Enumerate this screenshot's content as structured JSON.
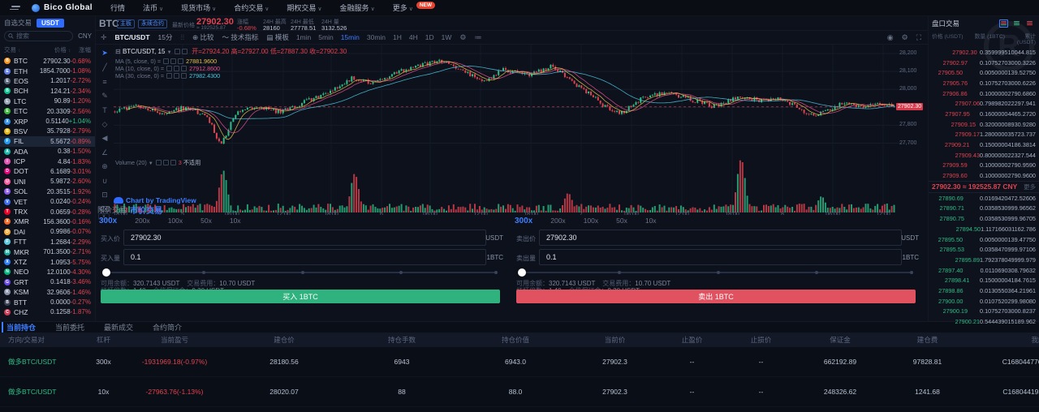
{
  "colors": {
    "accent": "#3d7eff",
    "up": "#2ebd85",
    "down": "#e0434f",
    "ma5": "#e7c14c",
    "ma10": "#e8518f",
    "ma30": "#4cc8e0"
  },
  "navbar": {
    "logo_text": "Bico Global",
    "items": [
      {
        "label": "行情",
        "caret": false
      },
      {
        "label": "法币",
        "caret": true
      },
      {
        "label": "现货市场",
        "caret": true
      },
      {
        "label": "合约交易",
        "caret": true
      },
      {
        "label": "期权交易",
        "caret": true
      },
      {
        "label": "金融服务",
        "caret": true
      },
      {
        "label": "更多",
        "caret": true
      }
    ],
    "badge": "NEW"
  },
  "sidebar": {
    "fav_tab": "自选交易",
    "quote_tab": "USDT",
    "search_placeholder": "搜索",
    "currency_label": "CNY",
    "col_pair": "交易",
    "col_price": "价格",
    "col_change": "涨幅",
    "coins": [
      {
        "sym": "BTC",
        "price": "27902.30",
        "chg": "-0.68%",
        "dir": "dn",
        "color": "#f7931a",
        "sel": false
      },
      {
        "sym": "ETH",
        "price": "1854.7000",
        "chg": "-1.08%",
        "dir": "dn",
        "color": "#627eea",
        "sel": false
      },
      {
        "sym": "EOS",
        "price": "1.2017",
        "chg": "-2.72%",
        "dir": "dn",
        "color": "#59637a",
        "sel": false
      },
      {
        "sym": "BCH",
        "price": "124.21",
        "chg": "-2.34%",
        "dir": "dn",
        "color": "#0ac18e",
        "sel": false
      },
      {
        "sym": "LTC",
        "price": "90.89",
        "chg": "-1.20%",
        "dir": "dn",
        "color": "#9aa5b5",
        "sel": false
      },
      {
        "sym": "ETC",
        "price": "20.3309",
        "chg": "-2.56%",
        "dir": "dn",
        "color": "#3ab83a",
        "sel": false
      },
      {
        "sym": "XRP",
        "price": "0.51140",
        "chg": "+1.04%",
        "dir": "up",
        "color": "#2f8fe8",
        "sel": false
      },
      {
        "sym": "BSV",
        "price": "35.7928",
        "chg": "-2.79%",
        "dir": "dn",
        "color": "#eab304",
        "sel": false
      },
      {
        "sym": "FIL",
        "price": "5.5672",
        "chg": "-0.89%",
        "dir": "dn",
        "color": "#1f9cf0",
        "sel": true
      },
      {
        "sym": "ADA",
        "price": "0.38",
        "chg": "-1.50%",
        "dir": "dn",
        "color": "#15b8a6",
        "sel": false
      },
      {
        "sym": "ICP",
        "price": "4.84",
        "chg": "-1.83%",
        "dir": "dn",
        "color": "#e755b5",
        "sel": false
      },
      {
        "sym": "DOT",
        "price": "6.1689",
        "chg": "-3.01%",
        "dir": "dn",
        "color": "#e6007a",
        "sel": false
      },
      {
        "sym": "UNI",
        "price": "5.9872",
        "chg": "-2.60%",
        "dir": "dn",
        "color": "#ff5b9e",
        "sel": false
      },
      {
        "sym": "SOL",
        "price": "20.3515",
        "chg": "-1.92%",
        "dir": "dn",
        "color": "#8e5bf0",
        "sel": false
      },
      {
        "sym": "VET",
        "price": "0.0240",
        "chg": "-0.24%",
        "dir": "dn",
        "color": "#3e6ef0",
        "sel": false
      },
      {
        "sym": "TRX",
        "price": "0.0659",
        "chg": "-0.28%",
        "dir": "dn",
        "color": "#eb0029",
        "sel": false
      },
      {
        "sym": "XMR",
        "price": "156.3600",
        "chg": "-0.16%",
        "dir": "dn",
        "color": "#f26822",
        "sel": false
      },
      {
        "sym": "DAI",
        "price": "0.9986",
        "chg": "-0.07%",
        "dir": "dn",
        "color": "#f5ac37",
        "sel": false
      },
      {
        "sym": "FTT",
        "price": "1.2684",
        "chg": "-2.29%",
        "dir": "dn",
        "color": "#5fcade",
        "sel": false
      },
      {
        "sym": "MKR",
        "price": "701.3500",
        "chg": "-2.71%",
        "dir": "dn",
        "color": "#1aab9b",
        "sel": false
      },
      {
        "sym": "XTZ",
        "price": "1.0953",
        "chg": "-5.75%",
        "dir": "dn",
        "color": "#2c7df7",
        "sel": false
      },
      {
        "sym": "NEO",
        "price": "12.0100",
        "chg": "-4.30%",
        "dir": "dn",
        "color": "#00b57c",
        "sel": false
      },
      {
        "sym": "GRT",
        "price": "0.1418",
        "chg": "-3.46%",
        "dir": "dn",
        "color": "#6747ed",
        "sel": false
      },
      {
        "sym": "KSM",
        "price": "32.9606",
        "chg": "-1.46%",
        "dir": "dn",
        "color": "#8893a8",
        "sel": false
      },
      {
        "sym": "BTT",
        "price": "0.0000",
        "chg": "-0.27%",
        "dir": "dn",
        "color": "#3a4356",
        "sel": false
      },
      {
        "sym": "CHZ",
        "price": "0.1258",
        "chg": "-1.87%",
        "dir": "dn",
        "color": "#cd3a54",
        "sel": false
      }
    ]
  },
  "chart": {
    "header": {
      "symbol": "BTC",
      "badge1": "主板",
      "badge2": "永续合约",
      "last_label": "最新价格",
      "last": "27902.30",
      "approx": "≈ 192525.87",
      "chg_label": "涨幅",
      "chg": "-0.68%",
      "high_label": "24H 最高",
      "high": "28160",
      "low_label": "24H 最低",
      "low": "27778.51",
      "vol_label": "24H 量",
      "vol": "3132.526"
    },
    "toolbar": {
      "symbol": "BTC/USDT",
      "interval": "15分",
      "compare": "比较",
      "indicators": "技术指标",
      "template": "模板",
      "timeframes": [
        "1min",
        "5min",
        "15min",
        "30min",
        "1H",
        "4H",
        "1D",
        "1W"
      ],
      "active_tf": "15min"
    },
    "legend": {
      "title": "BTC/USDT, 15",
      "o_label": "开=",
      "o": "27924.20",
      "h_label": "高=",
      "h": "27927.00",
      "l_label": "低=",
      "l": "27887.30",
      "c_label": "收=",
      "c": "27902.30",
      "ma5_label": "MA (5, close, 0) =",
      "ma5": "27881.9600",
      "ma10_label": "MA (10, close, 0) =",
      "ma10": "27912.8600",
      "ma30_label": "MA (30, close, 0) =",
      "ma30": "27982.4300",
      "vol_label": "Volume (20)",
      "vol_red": "3",
      "vol_na": "不适用"
    },
    "attribution": "Chart by TradingView",
    "price_labels": [
      28200,
      28100,
      28000,
      27900,
      27800,
      27700
    ],
    "current_tag": "27902.30",
    "time_labels": [
      "18:00",
      "5",
      "06:00",
      "12:00",
      "18:00",
      "6",
      "06:00",
      "12:00",
      "18:00",
      "7",
      "06:00",
      "12:00",
      "18:00",
      "8",
      "06:00",
      "12:00"
    ],
    "time_xs": [
      8,
      85,
      146,
      209,
      268,
      330,
      390,
      452,
      514,
      576,
      638,
      700,
      762,
      824,
      886,
      948
    ]
  },
  "chart_data": {
    "type": "candlestick",
    "symbol": "BTC/USDT",
    "interval": "15m",
    "price_range": [
      27630,
      28250
    ],
    "current_price": 27902.3,
    "ohlc_last": {
      "open": 27924.2,
      "high": 27927.0,
      "low": 27887.3,
      "close": 27902.3
    },
    "ma_values": {
      "ma5": 27881.96,
      "ma10": 27912.86,
      "ma30": 27982.43
    },
    "day_high": 28160,
    "day_low": 27778.51,
    "candles": 330,
    "seed": 911,
    "price_path": [
      [
        0,
        27880
      ],
      [
        30,
        27915
      ],
      [
        60,
        27870
      ],
      [
        90,
        27900
      ],
      [
        115,
        27850
      ],
      [
        132,
        27690
      ],
      [
        150,
        27860
      ],
      [
        175,
        27905
      ],
      [
        205,
        27875
      ],
      [
        235,
        27930
      ],
      [
        265,
        27985
      ],
      [
        295,
        28065
      ],
      [
        320,
        28030
      ],
      [
        342,
        28085
      ],
      [
        372,
        28125
      ],
      [
        405,
        28160
      ],
      [
        430,
        28095
      ],
      [
        460,
        28050
      ],
      [
        480,
        28110
      ],
      [
        510,
        28080
      ],
      [
        540,
        28130
      ],
      [
        560,
        28060
      ],
      [
        580,
        27995
      ],
      [
        605,
        27905
      ],
      [
        625,
        27865
      ],
      [
        650,
        27950
      ],
      [
        680,
        27985
      ],
      [
        710,
        27945
      ],
      [
        740,
        27905
      ],
      [
        770,
        27960
      ],
      [
        800,
        27935
      ],
      [
        820,
        27950
      ],
      [
        840,
        27905
      ],
      [
        860,
        27855
      ],
      [
        880,
        27885
      ],
      [
        900,
        27935
      ],
      [
        920,
        27900
      ],
      [
        945,
        27920
      ],
      [
        963,
        27902
      ]
    ],
    "vol_spikes": [
      [
        135,
        52
      ],
      [
        297,
        48
      ],
      [
        560,
        24
      ],
      [
        773,
        66
      ],
      [
        872,
        20
      ]
    ]
  },
  "orderbook": {
    "title": "盘口交易",
    "col_price": "价格 (USDT)",
    "col_qty": "数量 (1BTC)",
    "col_total": "累计 (USDT)",
    "asks": [
      [
        "27902.30",
        "0.3599995",
        "10044.815"
      ],
      [
        "27902.97",
        "0.1075270",
        "3000.3226"
      ],
      [
        "27905.50",
        "0.0050000",
        "139.52750"
      ],
      [
        "27905.76",
        "0.1075270",
        "3000.6226"
      ],
      [
        "27906.86",
        "0.1000000",
        "2790.6860"
      ],
      [
        "27907.06",
        "0.7989820",
        "22297.941"
      ],
      [
        "27907.95",
        "0.1600000",
        "4465.2720"
      ],
      [
        "27909.15",
        "0.3200000",
        "8930.9280"
      ],
      [
        "27909.17",
        "1.2800000",
        "35723.737"
      ],
      [
        "27909.21",
        "0.1500000",
        "4186.3814"
      ],
      [
        "27909.43",
        "0.8000000",
        "22327.544"
      ],
      [
        "27909.59",
        "0.1000000",
        "2790.9590"
      ],
      [
        "27909.60",
        "0.1000000",
        "2790.9600"
      ]
    ],
    "mid": "27902.30 ≈ 192525.87 CNY",
    "more": "更多",
    "bids": [
      [
        "27890.69",
        "0.0169420",
        "472.52606"
      ],
      [
        "27890.71",
        "0.0358530",
        "999.96562"
      ],
      [
        "27890.75",
        "0.0358530",
        "999.96705"
      ],
      [
        "27894.50",
        "1.1171660",
        "31162.786"
      ],
      [
        "27895.50",
        "0.0050000",
        "139.47750"
      ],
      [
        "27895.53",
        "0.0358470",
        "999.97106"
      ],
      [
        "27895.89",
        "1.7923780",
        "49999.979"
      ],
      [
        "27897.40",
        "0.0110690",
        "308.79632"
      ],
      [
        "27898.41",
        "0.1500000",
        "4184.7615"
      ],
      [
        "27898.86",
        "0.0130550",
        "364.21961"
      ],
      [
        "27900.00",
        "0.0107520",
        "299.98080"
      ],
      [
        "27900.19",
        "0.1075270",
        "3000.8237"
      ],
      [
        "27900.21",
        "0.5444390",
        "15189.962"
      ]
    ]
  },
  "trade": {
    "limit_tab": "限价交易",
    "market_tab": "市价交易",
    "leverages": [
      "300x",
      "200x",
      "100x",
      "50x",
      "10x"
    ],
    "active_leverage": "300x",
    "buy": {
      "price_label": "买入价",
      "price": "27902.30",
      "price_unit": "USDT",
      "amount_label": "买入量",
      "amount": "0.1",
      "amount_unit": "1BTC",
      "avail_label": "可用余额：",
      "avail": "320.7143 USDT",
      "fee_label": "交易费用：",
      "fee": "10.70 USDT",
      "lev_label": "杠杆倍数：",
      "lev": "1.40",
      "margin_label": "仓位保证金：",
      "margin": "9.30 USDT",
      "button": "买入 1BTC"
    },
    "sell": {
      "price_label": "卖出价",
      "price": "27902.30",
      "price_unit": "USDT",
      "amount_label": "卖出量",
      "amount": "0.1",
      "amount_unit": "1BTC",
      "avail_label": "可用余额：",
      "avail": "320.7143 USDT",
      "fee_label": "交易费用：",
      "fee": "10.70 USDT",
      "lev_label": "杠杆倍数：",
      "lev": "1.40",
      "margin_label": "仓位保证金：",
      "margin": "9.30 USDT",
      "button": "卖出 1BTC"
    }
  },
  "positions": {
    "tabs": [
      "当前持仓",
      "当前委托",
      "最新成交",
      "合约简介"
    ],
    "active_tab": "当前持仓",
    "columns": [
      "方向/交易对",
      "杠杆",
      "当前盈亏",
      "建仓价",
      "持仓手数",
      "持仓价值",
      "当前价",
      "止盈价",
      "止损价",
      "保证金",
      "建仓费",
      "我的订单"
    ],
    "rows": [
      {
        "pair": "做多BTC/USDT",
        "lev": "300x",
        "pnl": "-1931969.18(-0.97%)",
        "open": "28180.56",
        "lots": "6943",
        "value": "6943.0",
        "cur": "27902.3",
        "tp": "--",
        "sl": "--",
        "margin": "662192.89",
        "fee": "97828.81",
        "order": "C16804477651246b1db982"
      },
      {
        "pair": "做多BTC/USDT",
        "lev": "10x",
        "pnl": "-27963.76(-1.13%)",
        "open": "28020.07",
        "lots": "88",
        "value": "88.0",
        "cur": "27902.3",
        "tp": "--",
        "sl": "--",
        "margin": "248326.62",
        "fee": "1241.68",
        "order": "C16804419362611146b3a6"
      }
    ]
  }
}
